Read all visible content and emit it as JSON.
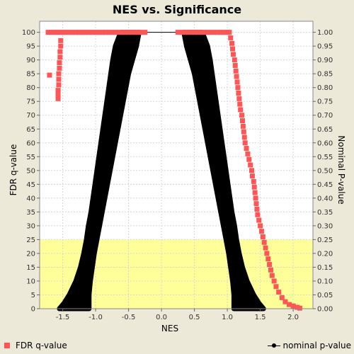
{
  "chart_data": {
    "type": "scatter",
    "title": "NES vs. Significance",
    "xlabel": "NES",
    "ylabel_left": "FDR q-value",
    "ylabel_right": "Nominal P-value",
    "xlim": [
      -1.85,
      2.3
    ],
    "ylim_left": [
      0,
      104
    ],
    "ylim_right": [
      0,
      1.04
    ],
    "x_ticks": [
      "-1.5",
      "-1.0",
      "-0.5",
      "0.0",
      "0.5",
      "1.0",
      "1.5",
      "2.0"
    ],
    "y_ticks_left": [
      "0",
      "5",
      "10",
      "15",
      "20",
      "25",
      "30",
      "35",
      "40",
      "45",
      "50",
      "55",
      "60",
      "65",
      "70",
      "75",
      "80",
      "85",
      "90",
      "95",
      "100"
    ],
    "y_ticks_right": [
      "0.00",
      "0.05",
      "0.10",
      "0.15",
      "0.20",
      "0.25",
      "0.30",
      "0.35",
      "0.40",
      "0.45",
      "0.50",
      "0.55",
      "0.60",
      "0.65",
      "0.70",
      "0.75",
      "0.80",
      "0.85",
      "0.90",
      "0.95",
      "1.00"
    ],
    "grid": true,
    "highlight_band": {
      "y_from": 0,
      "y_to": 25,
      "color": "#ffff99"
    },
    "series": [
      {
        "name": "FDR q-value",
        "axis": "left",
        "color": "#ff5555",
        "marker": "square",
        "points": [
          [
            -1.72,
            100
          ],
          [
            -1.68,
            100
          ],
          [
            -1.64,
            100
          ],
          [
            -1.6,
            100
          ],
          [
            -1.56,
            100
          ],
          [
            -1.52,
            100
          ],
          [
            -1.48,
            100
          ],
          [
            -1.44,
            100
          ],
          [
            -1.4,
            100
          ],
          [
            -1.35,
            100
          ],
          [
            -1.3,
            100
          ],
          [
            -1.25,
            100
          ],
          [
            -1.2,
            100
          ],
          [
            -1.15,
            100
          ],
          [
            -1.1,
            100
          ],
          [
            -1.05,
            100
          ],
          [
            -1.0,
            100
          ],
          [
            -0.95,
            100
          ],
          [
            -0.9,
            100
          ],
          [
            -0.85,
            100
          ],
          [
            -0.8,
            100
          ],
          [
            -0.75,
            100
          ],
          [
            -0.7,
            100
          ],
          [
            -0.65,
            100
          ],
          [
            -0.6,
            100
          ],
          [
            -0.55,
            100
          ],
          [
            -0.5,
            100
          ],
          [
            -0.45,
            100
          ],
          [
            -0.4,
            100
          ],
          [
            -0.35,
            100
          ],
          [
            -0.3,
            100
          ],
          [
            -0.25,
            100
          ],
          [
            -1.53,
            97
          ],
          [
            -1.53,
            95
          ],
          [
            -1.54,
            93
          ],
          [
            -1.54,
            91
          ],
          [
            -1.55,
            89
          ],
          [
            -1.55,
            87
          ],
          [
            -1.56,
            85
          ],
          [
            -1.56,
            83
          ],
          [
            -1.56,
            81
          ],
          [
            -1.57,
            79
          ],
          [
            -1.57,
            78
          ],
          [
            -1.57,
            77
          ],
          [
            -1.57,
            76
          ],
          [
            -1.7,
            84.5
          ],
          [
            0.25,
            100
          ],
          [
            0.3,
            100
          ],
          [
            0.35,
            100
          ],
          [
            0.4,
            100
          ],
          [
            0.45,
            100
          ],
          [
            0.5,
            100
          ],
          [
            0.55,
            100
          ],
          [
            0.6,
            100
          ],
          [
            0.65,
            100
          ],
          [
            0.7,
            100
          ],
          [
            0.75,
            100
          ],
          [
            0.8,
            100
          ],
          [
            0.85,
            100
          ],
          [
            0.9,
            100
          ],
          [
            0.95,
            100
          ],
          [
            1.0,
            100
          ],
          [
            1.03,
            100
          ],
          [
            1.05,
            98
          ],
          [
            1.07,
            96
          ],
          [
            1.08,
            94
          ],
          [
            1.09,
            92
          ],
          [
            1.11,
            90
          ],
          [
            1.12,
            88
          ],
          [
            1.13,
            86
          ],
          [
            1.14,
            84
          ],
          [
            1.15,
            82
          ],
          [
            1.16,
            80
          ],
          [
            1.17,
            78
          ],
          [
            1.18,
            76
          ],
          [
            1.19,
            74
          ],
          [
            1.2,
            72
          ],
          [
            1.22,
            70
          ],
          [
            1.23,
            68
          ],
          [
            1.24,
            66
          ],
          [
            1.25,
            64
          ],
          [
            1.26,
            62
          ],
          [
            1.27,
            60
          ],
          [
            1.29,
            58
          ],
          [
            1.31,
            56
          ],
          [
            1.33,
            54
          ],
          [
            1.35,
            52
          ],
          [
            1.37,
            50
          ],
          [
            1.38,
            48
          ],
          [
            1.4,
            46
          ],
          [
            1.41,
            44
          ],
          [
            1.42,
            42
          ],
          [
            1.43,
            40
          ],
          [
            1.44,
            38
          ],
          [
            1.45,
            36
          ],
          [
            1.46,
            34
          ],
          [
            1.48,
            32
          ],
          [
            1.5,
            30
          ],
          [
            1.52,
            28
          ],
          [
            1.54,
            26
          ],
          [
            1.56,
            24
          ],
          [
            1.58,
            22
          ],
          [
            1.6,
            20
          ],
          [
            1.62,
            18
          ],
          [
            1.64,
            16
          ],
          [
            1.66,
            14
          ],
          [
            1.68,
            12
          ],
          [
            1.71,
            10
          ],
          [
            1.74,
            8
          ],
          [
            1.78,
            6
          ],
          [
            1.83,
            4
          ],
          [
            1.88,
            2.5
          ],
          [
            1.94,
            1.5
          ],
          [
            2.0,
            1.0
          ],
          [
            2.06,
            0.5
          ],
          [
            2.1,
            0.2
          ]
        ]
      },
      {
        "name": "nominal p-value",
        "axis": "right",
        "color": "#000000",
        "marker": "circle",
        "envelopes": [
          {
            "y": [
              0.0,
              0.02,
              0.05,
              0.1,
              0.15,
              0.2,
              0.25,
              0.3,
              0.35,
              0.4,
              0.45,
              0.5,
              0.55,
              0.6,
              0.65,
              0.7,
              0.75,
              0.8,
              0.85,
              0.9,
              0.95,
              1.0
            ],
            "x_outer": [
              -1.55,
              -1.48,
              -1.4,
              -1.3,
              -1.23,
              -1.18,
              -1.14,
              -1.11,
              -1.07,
              -1.04,
              -1.01,
              -0.98,
              -0.95,
              -0.92,
              -0.89,
              -0.86,
              -0.83,
              -0.8,
              -0.77,
              -0.74,
              -0.7,
              -0.62
            ],
            "x_inner": [
              -1.1,
              -1.1,
              -1.1,
              -1.08,
              -1.05,
              -1.02,
              -0.98,
              -0.94,
              -0.9,
              -0.86,
              -0.82,
              -0.78,
              -0.74,
              -0.7,
              -0.66,
              -0.62,
              -0.58,
              -0.54,
              -0.5,
              -0.44,
              -0.38,
              -0.34
            ]
          },
          {
            "y": [
              0.0,
              0.02,
              0.05,
              0.1,
              0.15,
              0.2,
              0.25,
              0.3,
              0.35,
              0.4,
              0.45,
              0.5,
              0.55,
              0.6,
              0.65,
              0.7,
              0.75,
              0.8,
              0.85,
              0.9,
              0.95,
              1.0
            ],
            "x_inner": [
              1.1,
              1.1,
              1.1,
              1.08,
              1.05,
              1.02,
              0.98,
              0.94,
              0.9,
              0.86,
              0.82,
              0.78,
              0.74,
              0.7,
              0.66,
              0.62,
              0.58,
              0.54,
              0.5,
              0.44,
              0.38,
              0.34
            ],
            "x_outer": [
              1.55,
              1.48,
              1.4,
              1.3,
              1.23,
              1.18,
              1.14,
              1.11,
              1.07,
              1.04,
              1.01,
              0.98,
              0.95,
              0.92,
              0.89,
              0.86,
              0.83,
              0.8,
              0.77,
              0.74,
              0.7,
              0.62
            ]
          }
        ],
        "top_line": [
          [
            -0.3,
            1.0
          ],
          [
            0.3,
            1.0
          ]
        ]
      }
    ],
    "legend": {
      "placement": "bottom",
      "entries": [
        "FDR q-value",
        "nominal p-value"
      ]
    }
  }
}
